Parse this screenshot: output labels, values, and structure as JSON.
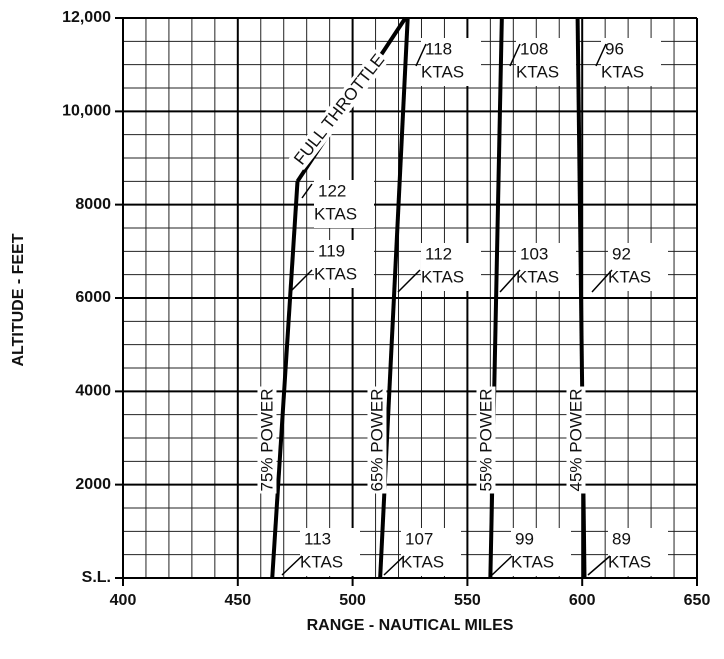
{
  "chart_data": {
    "type": "line",
    "xlabel": "RANGE - NAUTICAL MILES",
    "ylabel": "ALTITUDE - FEET",
    "xlim": [
      400,
      650
    ],
    "xticks": [
      400,
      450,
      500,
      550,
      600,
      650
    ],
    "ylim": [
      0,
      12000
    ],
    "yticks": [
      {
        "value": 0,
        "label": "S.L."
      },
      2000,
      4000,
      6000,
      8000,
      {
        "value": 10000,
        "label": "10,000"
      },
      {
        "value": 12000,
        "label": "12,000"
      }
    ],
    "grid": true,
    "color": "#000000",
    "series": [
      {
        "name": "75% POWER",
        "x": [
          465,
          476
        ],
        "y": [
          0,
          8500
        ]
      },
      {
        "name": "FULL THROTTLE",
        "x": [
          476,
          523
        ],
        "y": [
          8500,
          12000
        ]
      },
      {
        "name": "65% POWER",
        "x": [
          512,
          524
        ],
        "y": [
          0,
          12000
        ]
      },
      {
        "name": "55% POWER",
        "x": [
          560,
          565
        ],
        "y": [
          0,
          12000
        ]
      },
      {
        "name": "45% POWER",
        "x": [
          601,
          598
        ],
        "y": [
          0,
          12000
        ]
      }
    ],
    "annotations": [
      [
        "118",
        "KTAS"
      ],
      [
        "108",
        "KTAS"
      ],
      [
        "96",
        "KTAS"
      ],
      [
        "122",
        "KTAS"
      ],
      [
        "119",
        "KTAS"
      ],
      [
        "112",
        "KTAS"
      ],
      [
        "103",
        "KTAS"
      ],
      [
        "92",
        "KTAS"
      ],
      [
        "113",
        "KTAS"
      ],
      [
        "107",
        "KTAS"
      ],
      [
        "99",
        "KTAS"
      ],
      [
        "89",
        "KTAS"
      ]
    ]
  }
}
